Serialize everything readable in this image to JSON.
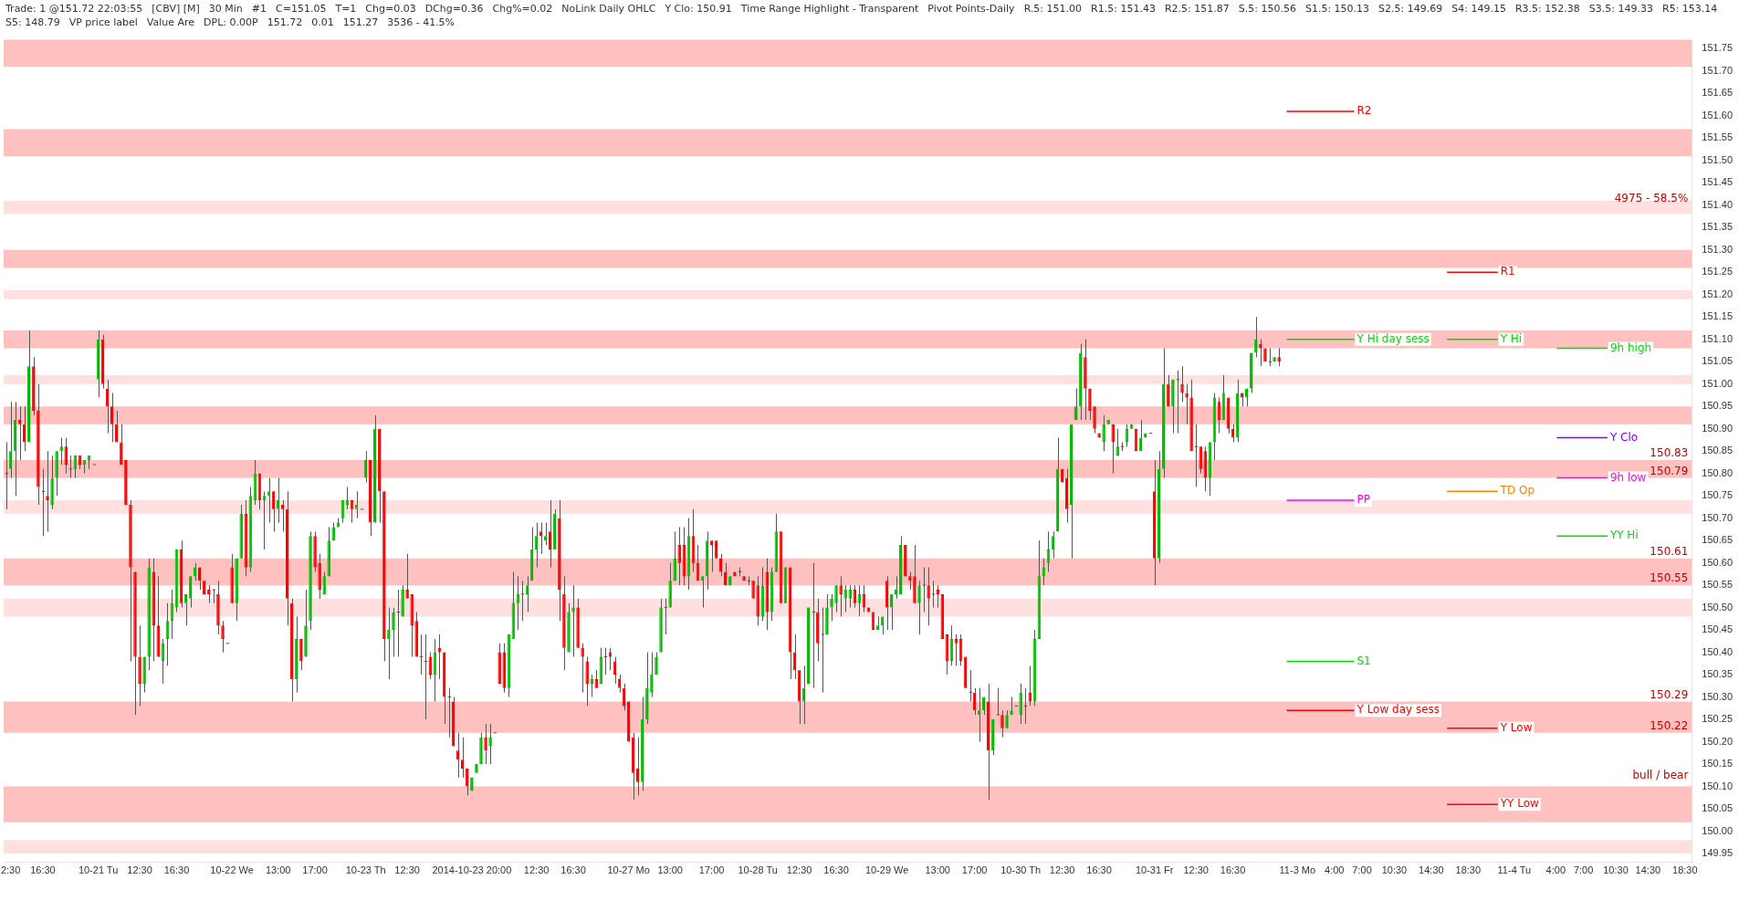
{
  "chart_data": {
    "type": "candlestick",
    "categories": [
      null,
      "2:30",
      null,
      null,
      null,
      null,
      null,
      null,
      "16:30",
      null,
      null,
      null,
      null,
      null,
      null,
      null,
      null,
      null,
      null,
      null,
      "10-21 Tu",
      null,
      null,
      null,
      null,
      null,
      null,
      null,
      null,
      "12:30",
      null,
      null,
      null,
      null,
      null,
      null,
      null,
      "16:30",
      null,
      null,
      null,
      null,
      null,
      null,
      null,
      null,
      null,
      null,
      null,
      "10-22 We",
      null,
      null,
      null,
      null,
      null,
      null,
      null,
      null,
      null,
      "13:00",
      null,
      null,
      null,
      null,
      null,
      null,
      null,
      "17:00",
      null,
      null,
      null,
      null,
      null,
      null,
      null,
      null,
      null,
      null,
      "10-23 Th",
      null,
      null,
      null,
      null,
      null,
      null,
      null,
      null,
      "12:30",
      null,
      null,
      null,
      null,
      null,
      null,
      null,
      null,
      null,
      null,
      null,
      null,
      null,
      "2014-10-23 20:00",
      null,
      null,
      null,
      null,
      null,
      null,
      null,
      null,
      null,
      null,
      null,
      null,
      null,
      "12:30",
      null,
      null,
      null,
      null,
      null,
      null,
      null,
      "16:30",
      null,
      null,
      null,
      null,
      null,
      null,
      null,
      null,
      null,
      null,
      null,
      "10-27 Mo",
      null,
      null,
      null,
      null,
      null,
      null,
      null,
      null,
      "13:00",
      null,
      null,
      null,
      null,
      null,
      null,
      null,
      null,
      "17:00",
      null,
      null,
      null,
      null,
      null,
      null,
      null,
      null,
      null,
      "10-28 Tu",
      null,
      null,
      null,
      null,
      null,
      null,
      null,
      null,
      "12:30",
      null,
      null,
      null,
      null,
      null,
      null,
      null,
      "16:30",
      null,
      null,
      null,
      null,
      null,
      null,
      null,
      null,
      null,
      null,
      "10-29 We",
      null,
      null,
      null,
      null,
      null,
      null,
      null,
      null,
      null,
      null,
      "13:00",
      null,
      null,
      null,
      null,
      null,
      null,
      null,
      "17:00",
      null,
      null,
      null,
      null,
      null,
      null,
      null,
      null,
      null,
      "10-30 Th",
      null,
      null,
      null,
      null,
      null,
      null,
      null,
      null,
      "12:30",
      null,
      null,
      null,
      null,
      null,
      null,
      null,
      "16:30",
      null,
      null,
      null,
      null,
      null,
      null,
      null,
      null,
      null,
      null,
      null,
      "10-31 Fr",
      null,
      null,
      null,
      null,
      null,
      null,
      null,
      null,
      "12:30",
      null,
      null,
      null,
      null,
      null,
      null,
      null,
      "16:30",
      null,
      null,
      null,
      null,
      null,
      null,
      null,
      null,
      null,
      null,
      null,
      null,
      null,
      "11-3 Mo",
      null,
      null,
      null,
      null,
      null,
      null,
      null,
      "4:00",
      null,
      null,
      null,
      null,
      null,
      "7:00",
      null,
      null,
      null,
      null,
      null,
      null,
      "10:30",
      null,
      null,
      null,
      null,
      null,
      null,
      null,
      "14:30",
      null,
      null,
      null,
      null,
      null,
      null,
      null,
      "18:30",
      null,
      null,
      null,
      null,
      null,
      null,
      null,
      null,
      null,
      "11-4 Tu",
      null,
      null,
      null,
      null,
      null,
      null,
      null,
      null,
      "4:00",
      null,
      null,
      null,
      null,
      null,
      "7:00",
      null,
      null,
      null,
      null,
      null,
      null,
      "10:30",
      null,
      null,
      null,
      null,
      null,
      null,
      "14:30",
      null,
      null,
      null,
      null,
      null,
      null,
      null,
      "18:30",
      null
    ],
    "ohlc": [
      [
        150.8,
        150.87,
        150.72,
        150.8
      ],
      [
        150.81,
        150.96,
        150.79,
        150.85
      ],
      [
        150.85,
        150.96,
        150.75,
        150.92
      ],
      [
        150.92,
        150.95,
        150.83,
        150.91
      ],
      [
        150.91,
        150.95,
        150.85,
        150.87
      ],
      [
        150.87,
        151.12,
        150.87,
        151.04
      ],
      [
        151.04,
        151.06,
        150.93,
        150.94
      ],
      [
        150.94,
        151.0,
        150.73,
        150.77
      ],
      [
        150.76,
        150.81,
        150.66,
        150.76
      ],
      [
        150.75,
        150.85,
        150.67,
        150.74
      ],
      [
        150.73,
        150.84,
        150.72,
        150.79
      ],
      [
        150.79,
        150.85,
        150.75,
        150.85
      ],
      [
        150.85,
        150.88,
        150.82,
        150.86
      ],
      [
        150.86,
        150.88,
        150.8,
        150.82
      ],
      [
        150.81,
        150.84,
        150.79,
        150.81
      ],
      [
        150.81,
        150.84,
        150.79,
        150.84
      ],
      [
        150.84,
        150.84,
        150.81,
        150.82
      ],
      [
        150.82,
        150.83,
        150.8,
        150.83
      ],
      [
        150.83,
        150.84,
        150.81,
        150.84
      ],
      [
        150.82,
        150.82,
        150.82,
        150.82
      ],
      [
        151.01,
        151.12,
        150.97,
        151.1
      ],
      [
        151.1,
        151.11,
        150.99,
        151.0
      ],
      [
        150.99,
        151.01,
        150.89,
        150.95
      ],
      [
        150.95,
        150.98,
        150.87,
        150.91
      ],
      [
        150.91,
        150.94,
        150.87,
        150.87
      ],
      [
        150.87,
        150.91,
        150.82,
        150.82
      ],
      [
        150.83,
        150.83,
        150.73,
        150.73
      ],
      [
        150.73,
        150.74,
        150.38,
        150.59
      ],
      [
        150.58,
        150.58,
        150.26,
        150.39
      ],
      [
        150.39,
        150.46,
        150.28,
        150.33
      ],
      [
        150.33,
        150.39,
        150.31,
        150.39
      ],
      [
        150.39,
        150.61,
        150.36,
        150.59
      ],
      [
        150.58,
        150.61,
        150.38,
        150.46
      ],
      [
        150.46,
        150.57,
        150.39,
        150.39
      ],
      [
        150.38,
        150.43,
        150.33,
        150.42
      ],
      [
        150.43,
        150.51,
        150.37,
        150.47
      ],
      [
        150.47,
        150.54,
        150.43,
        150.51
      ],
      [
        150.5,
        150.63,
        150.49,
        150.63
      ],
      [
        150.63,
        150.65,
        150.5,
        150.51
      ],
      [
        150.51,
        150.53,
        150.46,
        150.53
      ],
      [
        150.52,
        150.57,
        150.5,
        150.57
      ],
      [
        150.57,
        150.6,
        150.56,
        150.59
      ],
      [
        150.59,
        150.59,
        150.54,
        150.56
      ],
      [
        150.56,
        150.56,
        150.53,
        150.53
      ],
      [
        150.54,
        150.55,
        150.51,
        150.53
      ],
      [
        150.54,
        150.54,
        150.51,
        150.54
      ],
      [
        150.53,
        150.56,
        150.44,
        150.46
      ],
      [
        150.46,
        150.47,
        150.4,
        150.43
      ],
      [
        150.42,
        150.42,
        150.42,
        150.42
      ],
      [
        150.59,
        150.62,
        150.51,
        150.51
      ],
      [
        150.51,
        150.61,
        150.47,
        150.61
      ],
      [
        150.61,
        150.73,
        150.61,
        150.71
      ],
      [
        150.71,
        150.74,
        150.57,
        150.59
      ],
      [
        150.59,
        150.77,
        150.58,
        150.75
      ],
      [
        150.74,
        150.83,
        150.73,
        150.8
      ],
      [
        150.8,
        150.8,
        150.72,
        150.74
      ],
      [
        150.74,
        150.76,
        150.63,
        150.75
      ],
      [
        150.75,
        150.79,
        150.69,
        150.76
      ],
      [
        150.76,
        150.76,
        150.67,
        150.72
      ],
      [
        150.72,
        150.79,
        150.69,
        150.74
      ],
      [
        150.73,
        150.74,
        150.67,
        150.72
      ],
      [
        150.72,
        150.76,
        150.46,
        150.52
      ],
      [
        150.51,
        150.52,
        150.29,
        150.34
      ],
      [
        150.34,
        150.48,
        150.31,
        150.43
      ],
      [
        150.43,
        150.43,
        150.36,
        150.38
      ],
      [
        150.39,
        150.54,
        150.39,
        150.46
      ],
      [
        150.47,
        150.67,
        150.45,
        150.66
      ],
      [
        150.66,
        150.67,
        150.58,
        150.59
      ],
      [
        150.6,
        150.62,
        150.52,
        150.54
      ],
      [
        150.53,
        150.58,
        150.53,
        150.57
      ],
      [
        150.57,
        150.68,
        150.57,
        150.65
      ],
      [
        150.65,
        150.69,
        150.65,
        150.68
      ],
      [
        150.68,
        150.7,
        150.68,
        150.69
      ],
      [
        150.7,
        150.74,
        150.69,
        150.74
      ],
      [
        150.73,
        150.77,
        150.72,
        150.74
      ],
      [
        150.74,
        150.74,
        150.69,
        150.72
      ],
      [
        150.72,
        150.76,
        150.7,
        150.73
      ],
      [
        150.72,
        150.72,
        150.72,
        150.72
      ],
      [
        150.79,
        150.85,
        150.78,
        150.83
      ],
      [
        150.83,
        150.83,
        150.66,
        150.69
      ],
      [
        150.69,
        150.93,
        150.69,
        150.9
      ],
      [
        150.9,
        150.9,
        150.69,
        150.76
      ],
      [
        150.76,
        150.76,
        150.38,
        150.43
      ],
      [
        150.43,
        150.5,
        150.34,
        150.45
      ],
      [
        150.45,
        150.5,
        150.39,
        150.49
      ],
      [
        150.49,
        150.54,
        150.39,
        150.49
      ],
      [
        150.48,
        150.55,
        150.48,
        150.54
      ],
      [
        150.54,
        150.62,
        150.52,
        150.52
      ],
      [
        150.53,
        150.53,
        150.39,
        150.46
      ],
      [
        150.47,
        150.49,
        150.39,
        150.39
      ],
      [
        150.39,
        150.44,
        150.35,
        150.39
      ],
      [
        150.38,
        150.44,
        150.25,
        150.38
      ],
      [
        150.39,
        150.4,
        150.34,
        150.35
      ],
      [
        150.35,
        150.43,
        150.29,
        150.4
      ],
      [
        150.41,
        150.44,
        150.34,
        150.4
      ],
      [
        150.4,
        150.4,
        150.24,
        150.3
      ],
      [
        150.3,
        150.32,
        150.21,
        150.3
      ],
      [
        150.29,
        150.3,
        150.19,
        150.19
      ],
      [
        150.18,
        150.22,
        150.12,
        150.16
      ],
      [
        150.16,
        150.21,
        150.12,
        150.14
      ],
      [
        150.14,
        150.14,
        150.08,
        150.1
      ],
      [
        150.09,
        150.12,
        150.09,
        150.12
      ],
      [
        150.13,
        150.15,
        150.13,
        150.15
      ],
      [
        150.15,
        150.22,
        150.15,
        150.21
      ],
      [
        150.21,
        150.24,
        150.15,
        150.18
      ],
      [
        150.19,
        150.24,
        150.15,
        150.21
      ],
      [
        150.22,
        150.22,
        150.22,
        150.22
      ],
      [
        150.4,
        150.42,
        150.33,
        150.33
      ],
      [
        150.4,
        150.42,
        150.31,
        150.32
      ],
      [
        150.32,
        150.44,
        150.3,
        150.44
      ],
      [
        150.43,
        150.58,
        150.43,
        150.51
      ],
      [
        150.51,
        150.57,
        150.45,
        150.53
      ],
      [
        150.53,
        150.56,
        150.47,
        150.53
      ],
      [
        150.53,
        150.57,
        150.49,
        150.55
      ],
      [
        150.56,
        150.68,
        150.56,
        150.63
      ],
      [
        150.63,
        150.69,
        150.59,
        150.66
      ],
      [
        150.67,
        150.69,
        150.62,
        150.66
      ],
      [
        150.65,
        150.69,
        150.64,
        150.66
      ],
      [
        150.67,
        150.74,
        150.59,
        150.63
      ],
      [
        150.63,
        150.72,
        150.63,
        150.71
      ],
      [
        150.7,
        150.74,
        150.47,
        150.54
      ],
      [
        150.53,
        150.57,
        150.36,
        150.41
      ],
      [
        150.4,
        150.51,
        150.4,
        150.49
      ],
      [
        150.49,
        150.55,
        150.39,
        150.5
      ],
      [
        150.5,
        150.52,
        150.41,
        150.41
      ],
      [
        150.41,
        150.42,
        150.31,
        150.39
      ],
      [
        150.38,
        150.39,
        150.28,
        150.33
      ],
      [
        150.33,
        150.35,
        150.3,
        150.34
      ],
      [
        150.34,
        150.36,
        150.32,
        150.32
      ],
      [
        150.33,
        150.41,
        150.33,
        150.39
      ],
      [
        150.39,
        150.41,
        150.35,
        150.39
      ],
      [
        150.4,
        150.41,
        150.36,
        150.39
      ],
      [
        150.38,
        150.39,
        150.33,
        150.35
      ],
      [
        150.34,
        150.35,
        150.31,
        150.32
      ],
      [
        150.32,
        150.33,
        150.27,
        150.28
      ],
      [
        150.29,
        150.29,
        150.2,
        150.2
      ],
      [
        150.21,
        150.22,
        150.07,
        150.13
      ],
      [
        150.14,
        150.21,
        150.08,
        150.11
      ],
      [
        150.11,
        150.3,
        150.09,
        150.25
      ],
      [
        150.25,
        150.4,
        150.24,
        150.32
      ],
      [
        150.31,
        150.4,
        150.3,
        150.35
      ],
      [
        150.35,
        150.4,
        150.35,
        150.39
      ],
      [
        150.4,
        150.52,
        150.4,
        150.5
      ],
      [
        150.5,
        150.52,
        150.44,
        150.5
      ],
      [
        150.5,
        150.6,
        150.5,
        150.56
      ],
      [
        150.56,
        150.67,
        150.56,
        150.61
      ],
      [
        150.64,
        150.68,
        150.55,
        150.6
      ],
      [
        150.64,
        150.68,
        150.55,
        150.57
      ],
      [
        150.57,
        150.7,
        150.54,
        150.66
      ],
      [
        150.66,
        150.72,
        150.58,
        150.6
      ],
      [
        150.6,
        150.64,
        150.56,
        150.56
      ],
      [
        150.56,
        150.57,
        150.5,
        150.57
      ],
      [
        150.57,
        150.67,
        150.54,
        150.65
      ],
      [
        150.65,
        150.65,
        150.58,
        150.64
      ],
      [
        150.65,
        150.65,
        150.61,
        150.61
      ],
      [
        150.61,
        150.62,
        150.57,
        150.58
      ],
      [
        150.58,
        150.6,
        150.55,
        150.55
      ],
      [
        150.55,
        150.57,
        150.55,
        150.57
      ],
      [
        150.58,
        150.58,
        150.57,
        150.57
      ],
      [
        150.58,
        150.59,
        150.57,
        150.58
      ],
      [
        150.57,
        150.57,
        150.56,
        150.56
      ],
      [
        150.56,
        150.57,
        150.55,
        150.56
      ],
      [
        150.56,
        150.56,
        150.52,
        150.52
      ],
      [
        150.55,
        150.57,
        150.46,
        150.48
      ],
      [
        150.48,
        150.59,
        150.47,
        150.55
      ],
      [
        150.58,
        150.61,
        150.45,
        150.49
      ],
      [
        150.49,
        150.59,
        150.47,
        150.58
      ],
      [
        150.58,
        150.71,
        150.58,
        150.67
      ],
      [
        150.67,
        150.67,
        150.51,
        150.51
      ],
      [
        150.51,
        150.59,
        150.51,
        150.59
      ],
      [
        150.59,
        150.59,
        150.34,
        150.4
      ],
      [
        150.4,
        150.44,
        150.34,
        150.36
      ],
      [
        150.36,
        150.36,
        150.24,
        150.29
      ],
      [
        150.29,
        150.37,
        150.24,
        150.32
      ],
      [
        150.33,
        150.5,
        150.33,
        150.5
      ],
      [
        150.49,
        150.6,
        150.32,
        150.49
      ],
      [
        150.49,
        150.52,
        150.38,
        150.42
      ],
      [
        150.44,
        150.5,
        150.31,
        150.44
      ],
      [
        150.44,
        150.53,
        150.44,
        150.5
      ],
      [
        150.5,
        150.53,
        150.47,
        150.52
      ],
      [
        150.51,
        150.55,
        150.49,
        150.55
      ],
      [
        150.55,
        150.57,
        150.48,
        150.53
      ],
      [
        150.52,
        150.55,
        150.49,
        150.54
      ],
      [
        150.52,
        150.55,
        150.5,
        150.54
      ],
      [
        150.54,
        150.55,
        150.5,
        150.51
      ],
      [
        150.51,
        150.55,
        150.48,
        150.53
      ],
      [
        150.53,
        150.55,
        150.49,
        150.5
      ],
      [
        150.5,
        150.5,
        150.49,
        150.49
      ],
      [
        150.49,
        150.49,
        150.45,
        150.45
      ],
      [
        150.45,
        150.48,
        150.45,
        150.46
      ],
      [
        150.46,
        150.48,
        150.44,
        150.48
      ],
      [
        150.56,
        150.57,
        150.45,
        150.5
      ],
      [
        150.5,
        150.53,
        150.45,
        150.53
      ],
      [
        150.53,
        150.57,
        150.52,
        150.54
      ],
      [
        150.53,
        150.66,
        150.53,
        150.64
      ],
      [
        150.64,
        150.64,
        150.57,
        150.57
      ],
      [
        150.57,
        150.58,
        150.54,
        150.56
      ],
      [
        150.57,
        150.64,
        150.51,
        150.51
      ],
      [
        150.51,
        150.56,
        150.44,
        150.55
      ],
      [
        150.55,
        150.59,
        150.49,
        150.55
      ],
      [
        150.55,
        150.59,
        150.46,
        150.52
      ],
      [
        150.53,
        150.56,
        150.5,
        150.53
      ],
      [
        150.54,
        150.55,
        150.5,
        150.53
      ],
      [
        150.53,
        150.53,
        150.43,
        150.43
      ],
      [
        150.44,
        150.44,
        150.35,
        150.38
      ],
      [
        150.38,
        150.46,
        150.37,
        150.43
      ],
      [
        150.43,
        150.44,
        150.37,
        150.42
      ],
      [
        150.43,
        150.44,
        150.37,
        150.38
      ],
      [
        150.39,
        150.39,
        150.32,
        150.32
      ],
      [
        150.31,
        150.36,
        150.29,
        150.31
      ],
      [
        150.31,
        150.32,
        150.26,
        150.27
      ],
      [
        150.26,
        150.32,
        150.2,
        150.27
      ],
      [
        150.27,
        150.3,
        150.26,
        150.3
      ],
      [
        150.29,
        150.33,
        150.07,
        150.18
      ],
      [
        150.18,
        150.25,
        150.17,
        150.25
      ],
      [
        150.26,
        150.32,
        150.26,
        150.26
      ],
      [
        150.26,
        150.27,
        150.21,
        150.23
      ],
      [
        150.23,
        150.27,
        150.23,
        150.26
      ],
      [
        150.26,
        150.3,
        150.26,
        150.27
      ],
      [
        150.28,
        150.28,
        150.28,
        150.28
      ],
      [
        150.26,
        150.33,
        150.24,
        150.31
      ],
      [
        150.28,
        150.32,
        150.24,
        150.28
      ],
      [
        150.31,
        150.37,
        150.28,
        150.29
      ],
      [
        150.29,
        150.45,
        150.28,
        150.43
      ],
      [
        150.43,
        150.65,
        150.43,
        150.57
      ],
      [
        150.57,
        150.61,
        150.55,
        150.59
      ],
      [
        150.6,
        150.67,
        150.58,
        150.63
      ],
      [
        150.63,
        150.67,
        150.61,
        150.66
      ],
      [
        150.67,
        150.88,
        150.67,
        150.81
      ],
      [
        150.81,
        150.81,
        150.78,
        150.78
      ],
      [
        150.79,
        150.81,
        150.69,
        150.72
      ],
      [
        150.73,
        150.91,
        150.61,
        150.91
      ],
      [
        150.92,
        150.99,
        150.92,
        150.95
      ],
      [
        150.95,
        151.09,
        150.92,
        151.07
      ],
      [
        151.06,
        151.1,
        150.92,
        150.99
      ],
      [
        150.99,
        150.99,
        150.92,
        150.94
      ],
      [
        150.95,
        150.95,
        150.89,
        150.9
      ],
      [
        150.89,
        150.89,
        150.88,
        150.88
      ],
      [
        150.87,
        150.93,
        150.85,
        150.91
      ],
      [
        150.91,
        150.92,
        150.91,
        150.92
      ],
      [
        150.91,
        150.91,
        150.8,
        150.87
      ],
      [
        150.84,
        150.9,
        150.84,
        150.86
      ],
      [
        150.86,
        150.87,
        150.85,
        150.86
      ],
      [
        150.87,
        150.91,
        150.86,
        150.9
      ],
      [
        150.9,
        150.91,
        150.9,
        150.91
      ],
      [
        150.9,
        150.9,
        150.85,
        150.85
      ],
      [
        150.85,
        150.92,
        150.85,
        150.88
      ],
      [
        150.88,
        150.89,
        150.88,
        150.89
      ],
      [
        150.89,
        150.89,
        150.89,
        150.89
      ],
      [
        150.76,
        150.83,
        150.55,
        150.61
      ],
      [
        150.61,
        150.85,
        150.6,
        150.81
      ],
      [
        150.81,
        151.08,
        150.79,
        151.0
      ],
      [
        151.0,
        151.02,
        150.95,
        150.95
      ],
      [
        150.95,
        151.01,
        150.89,
        151.01
      ],
      [
        151.01,
        151.03,
        150.89,
        151.01
      ],
      [
        151.0,
        151.04,
        150.96,
        150.98
      ],
      [
        150.98,
        151.0,
        150.91,
        150.97
      ],
      [
        150.97,
        151.01,
        150.85,
        150.85
      ],
      [
        150.86,
        150.91,
        150.77,
        150.86
      ],
      [
        150.86,
        150.86,
        150.8,
        150.81
      ],
      [
        150.85,
        150.86,
        150.76,
        150.79
      ],
      [
        150.79,
        150.87,
        150.75,
        150.87
      ],
      [
        150.87,
        150.98,
        150.83,
        150.97
      ],
      [
        150.96,
        150.97,
        150.89,
        150.92
      ],
      [
        150.92,
        151.02,
        150.92,
        150.98
      ],
      [
        150.97,
        150.97,
        150.89,
        150.9
      ],
      [
        150.9,
        150.91,
        150.87,
        150.88
      ],
      [
        150.88,
        151.01,
        150.87,
        150.98
      ],
      [
        150.98,
        150.98,
        150.95,
        150.97
      ],
      [
        150.97,
        150.99,
        150.95,
        150.99
      ],
      [
        150.99,
        151.07,
        150.98,
        151.07
      ],
      [
        151.07,
        151.15,
        151.06,
        151.1
      ],
      [
        151.09,
        151.1,
        151.04,
        151.08
      ],
      [
        151.08,
        151.08,
        151.05,
        151.05
      ],
      [
        151.05,
        151.08,
        151.04,
        151.05
      ],
      [
        151.05,
        151.06,
        151.05,
        151.06
      ],
      [
        151.06,
        151.08,
        151.04,
        151.05
      ],
      null,
      null,
      null,
      null,
      null,
      null,
      null,
      null,
      null,
      null,
      null,
      null,
      null,
      null,
      null,
      null,
      null,
      null,
      null,
      null,
      null,
      null,
      null,
      null,
      null,
      null,
      null,
      null,
      null,
      null,
      null,
      null,
      null,
      null,
      null,
      null,
      null,
      null,
      null,
      null,
      null,
      null,
      null,
      null,
      null,
      null,
      null,
      null,
      null,
      null,
      null,
      null,
      null,
      null,
      null,
      null,
      null,
      null,
      null,
      null,
      null,
      null,
      null,
      null,
      null,
      null,
      null,
      null,
      null,
      null,
      null,
      null,
      null,
      null,
      null,
      null,
      null,
      null,
      null,
      null,
      null,
      null,
      null,
      null,
      null,
      null,
      null,
      null,
      null
    ],
    "ylim": [
      149.93,
      151.77
    ],
    "yticks": [
      149.95,
      {
        "value": 150,
        "label": "150.00"
      },
      150.05,
      {
        "value": 150.1,
        "label": "150.10"
      },
      150.15,
      {
        "value": 150.2,
        "label": "150.20"
      },
      150.25,
      {
        "value": 150.3,
        "label": "150.30"
      },
      150.35,
      {
        "value": 150.4,
        "label": "150.40"
      },
      150.45,
      {
        "value": 150.5,
        "label": "150.50"
      },
      150.55,
      {
        "value": 150.6,
        "label": "150.60"
      },
      150.65,
      {
        "value": 150.7,
        "label": "150.70"
      },
      150.75,
      {
        "value": 150.8,
        "label": "150.80"
      },
      150.85,
      {
        "value": 150.9,
        "label": "150.90"
      },
      150.95,
      {
        "value": 151,
        "label": "151.00"
      },
      151.05,
      {
        "value": 151.1,
        "label": "151.10"
      },
      151.15,
      {
        "value": 151.2,
        "label": "151.20"
      },
      151.25,
      {
        "value": 151.3,
        "label": "151.30"
      },
      151.35,
      {
        "value": 151.4,
        "label": "151.40"
      },
      151.45,
      {
        "value": 151.5,
        "label": "151.50"
      },
      151.55,
      {
        "value": 151.6,
        "label": "151.60"
      },
      151.65,
      {
        "value": 151.7,
        "label": "151.70"
      },
      151.75
    ],
    "bands": [
      {
        "axis": "y",
        "from": 151.71,
        "to": 151.77,
        "color": "#ffc0c0"
      },
      {
        "axis": "y",
        "from": 151.51,
        "to": 151.57,
        "color": "#ffc0c0"
      },
      {
        "axis": "y",
        "from": 151.38,
        "to": 151.41,
        "color": "#ffe0e0"
      },
      {
        "axis": "y",
        "from": 151.26,
        "to": 151.3,
        "color": "#ffc0c0"
      },
      {
        "axis": "y",
        "from": 151.19,
        "to": 151.21,
        "color": "#ffe0e0"
      },
      {
        "axis": "y",
        "from": 151.08,
        "to": 151.12,
        "color": "#ffc0c0"
      },
      {
        "axis": "y",
        "from": 151.0,
        "to": 151.02,
        "color": "#ffe0e0"
      },
      {
        "axis": "y",
        "from": 150.91,
        "to": 150.95,
        "color": "#ffc0c0"
      },
      {
        "axis": "y",
        "from": 150.79,
        "to": 150.83,
        "color": "#ffc0c0"
      },
      {
        "axis": "y",
        "from": 150.71,
        "to": 150.74,
        "color": "#ffe0e0"
      },
      {
        "axis": "y",
        "from": 150.55,
        "to": 150.61,
        "color": "#ffc0c0"
      },
      {
        "axis": "y",
        "from": 150.48,
        "to": 150.52,
        "color": "#ffe0e0"
      },
      {
        "axis": "y",
        "from": 150.22,
        "to": 150.29,
        "color": "#ffc0c0"
      },
      {
        "axis": "y",
        "from": 150.02,
        "to": 150.1,
        "color": "#ffc0c0"
      },
      {
        "axis": "y",
        "from": 149.95,
        "to": 149.98,
        "color": "#ffe0e0"
      }
    ],
    "ref_lines": [
      {
        "axis": "y",
        "value": 151.1,
        "label": "Y Hi day sess",
        "color": "#00dd00"
      },
      {
        "axis": "y",
        "value": 151.1,
        "label": "Y Hi",
        "color": "#00dd00"
      },
      {
        "axis": "y",
        "value": 151.08,
        "label": "9h high",
        "color": "#00dd00"
      },
      {
        "axis": "y",
        "value": 151.61,
        "label": "R2",
        "color": "#ff0000"
      },
      {
        "axis": "y",
        "value": 151.25,
        "label": "R1",
        "color": "#ff0000"
      },
      {
        "axis": "y",
        "value": 150.88,
        "label": "Y Clo",
        "color": "#8000ff"
      },
      {
        "axis": "y",
        "value": 150.74,
        "label": "PP",
        "color": "#ff00ff"
      },
      {
        "axis": "y",
        "value": 150.76,
        "label": "TD Op",
        "color": "#ff8000"
      },
      {
        "axis": "y",
        "value": 150.79,
        "label": "9h low",
        "color": "#ff00ff"
      },
      {
        "axis": "y",
        "value": 150.27,
        "label": "Y Low day sess",
        "color": "#ff0000"
      },
      {
        "axis": "y",
        "value": 150.23,
        "label": "Y Low",
        "color": "#ff0000"
      },
      {
        "axis": "y",
        "value": 150.66,
        "label": "YY Hi",
        "color": "#00dd00"
      },
      {
        "axis": "y",
        "value": 150.38,
        "label": "S1",
        "color": "#00dd00"
      },
      {
        "axis": "y",
        "value": 150.06,
        "label": "YY Low",
        "color": "#ff0000"
      }
    ],
    "annotations": [
      "Trade: 1 @151.72 22:03:55",
      "[CBV] [M]",
      "30 Min",
      "#1",
      "C=151.05",
      "T=1",
      "Chg=0.03",
      "DChg=0.36",
      "Chg%=0.02",
      "NoLink Daily OHLC",
      "Y Clo: 150.91",
      "Time Range Highlight - Transparent",
      "Pivot Points-Daily",
      "R.5: 151.00",
      "R1.5: 151.43",
      "R2.5: 151.87",
      "S.5: 150.56",
      "S1.5: 150.13",
      "S2.5: 149.69",
      "S4: 149.15",
      "R3.5: 152.38",
      "S3.5: 149.33",
      "R5: 153.14",
      "S5: 148.79",
      "VP price label",
      "Value Are",
      "DPL: 0.00P",
      "151.72",
      "0.01",
      "151.27",
      "3536 - 41.5%",
      {
        "text": "4975 - 58.5%",
        "y": 151.4
      },
      {
        "text": "150.83",
        "y": 150.83
      },
      {
        "text": "150.79",
        "y": 150.79
      },
      {
        "text": "150.61",
        "y": 150.61
      },
      {
        "text": "150.55",
        "y": 150.55
      },
      {
        "text": "150.29",
        "y": 150.29
      },
      {
        "text": "150.22",
        "y": 150.22
      },
      {
        "text": "bull / bear",
        "y": 150.11
      }
    ]
  }
}
